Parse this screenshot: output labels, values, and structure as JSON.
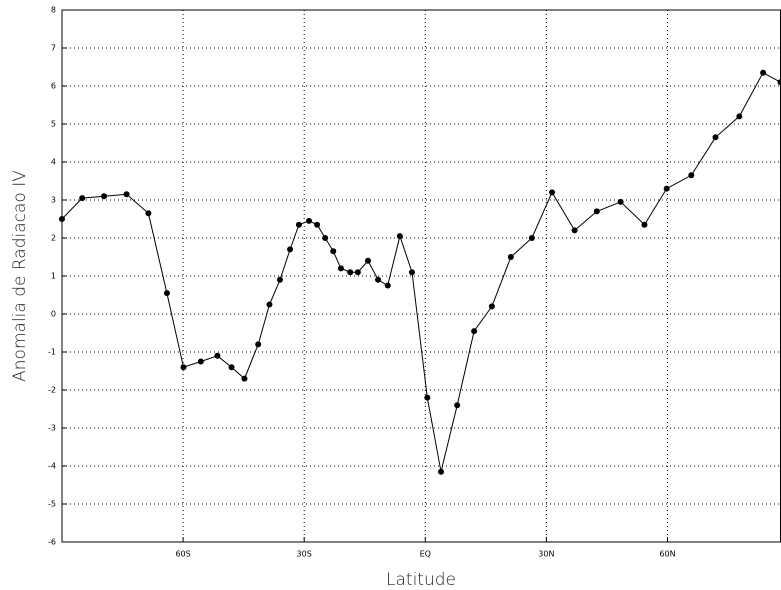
{
  "chart_data": {
    "type": "line",
    "x_label": "Latitude",
    "y_label": "Anomalia de Radiacao IV",
    "x": [
      -90,
      -85,
      -79.6,
      -74,
      -68.6,
      -64,
      -59.9,
      -55.6,
      -51.5,
      -48,
      -44.8,
      -41.4,
      -38.6,
      -36,
      -33.5,
      -31.3,
      -28.8,
      -26.8,
      -24.8,
      -22.8,
      -20.9,
      -18.6,
      -16.7,
      -14.2,
      -11.7,
      -9.3,
      -6.3,
      -3.3,
      0.5,
      3.9,
      7.9,
      12.1,
      16.5,
      21.2,
      26.4,
      31.4,
      37,
      42.5,
      48.4,
      54.3,
      59.8,
      65.9,
      71.9,
      77.8,
      83.7,
      88
    ],
    "values": [
      2.5,
      3.05,
      3.1,
      3.15,
      2.65,
      0.55,
      -1.4,
      -1.25,
      -1.1,
      -1.4,
      -1.7,
      -0.8,
      0.25,
      0.9,
      1.7,
      2.35,
      2.45,
      2.35,
      2.0,
      1.65,
      1.2,
      1.1,
      1.1,
      1.4,
      0.9,
      0.75,
      2.05,
      1.1,
      -2.2,
      -4.15,
      -2.4,
      -0.45,
      0.2,
      1.5,
      2.0,
      3.2,
      2.2,
      2.7,
      2.95,
      2.35,
      3.3,
      3.65,
      4.65,
      5.2,
      6.35,
      6.1
    ],
    "color": "#000000",
    "xlim": [
      -90,
      88
    ],
    "xticks": [
      {
        "value": -60,
        "label": "60S"
      },
      {
        "value": -30,
        "label": "30S"
      },
      {
        "value": 0,
        "label": "EQ"
      },
      {
        "value": 30,
        "label": "30N"
      },
      {
        "value": 60,
        "label": "60N"
      }
    ],
    "ylim": [
      -6,
      8
    ],
    "yticks": [
      -6,
      -5,
      -4,
      -3,
      -2,
      -1,
      0,
      1,
      2,
      3,
      4,
      5,
      6,
      7,
      8
    ],
    "grid": true
  }
}
